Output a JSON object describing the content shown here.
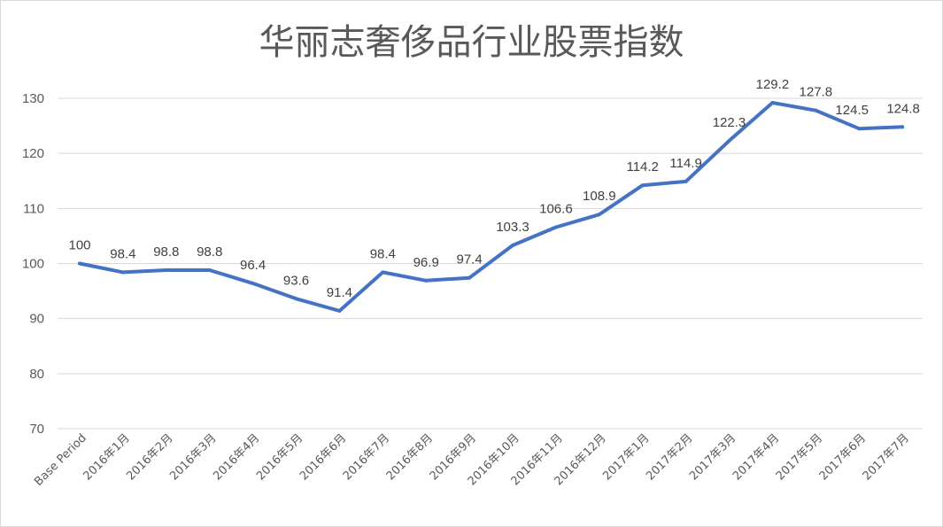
{
  "chart_data": {
    "type": "line",
    "title": "华丽志奢侈品行业股票指数",
    "xlabel": "",
    "ylabel": "",
    "ylim": [
      70,
      130
    ],
    "yticks": [
      70,
      80,
      90,
      100,
      110,
      120,
      130
    ],
    "grid": true,
    "legend": "none",
    "categories": [
      "Base Period",
      "2016年1月",
      "2016年2月",
      "2016年3月",
      "2016年4月",
      "2016年5月",
      "2016年6月",
      "2016年7月",
      "2016年8月",
      "2016年9月",
      "2016年10月",
      "2016年11月",
      "2016年12月",
      "2017年1月",
      "2017年2月",
      "2017年3月",
      "2017年4月",
      "2017年5月",
      "2017年6月",
      "2017年7月"
    ],
    "series": [
      {
        "color": "#4472c4",
        "values": [
          100,
          98.4,
          98.8,
          98.8,
          96.4,
          93.6,
          91.4,
          98.4,
          96.9,
          97.4,
          103.3,
          106.6,
          108.9,
          114.2,
          114.9,
          122.3,
          129.2,
          127.8,
          124.5,
          124.8
        ]
      }
    ]
  }
}
